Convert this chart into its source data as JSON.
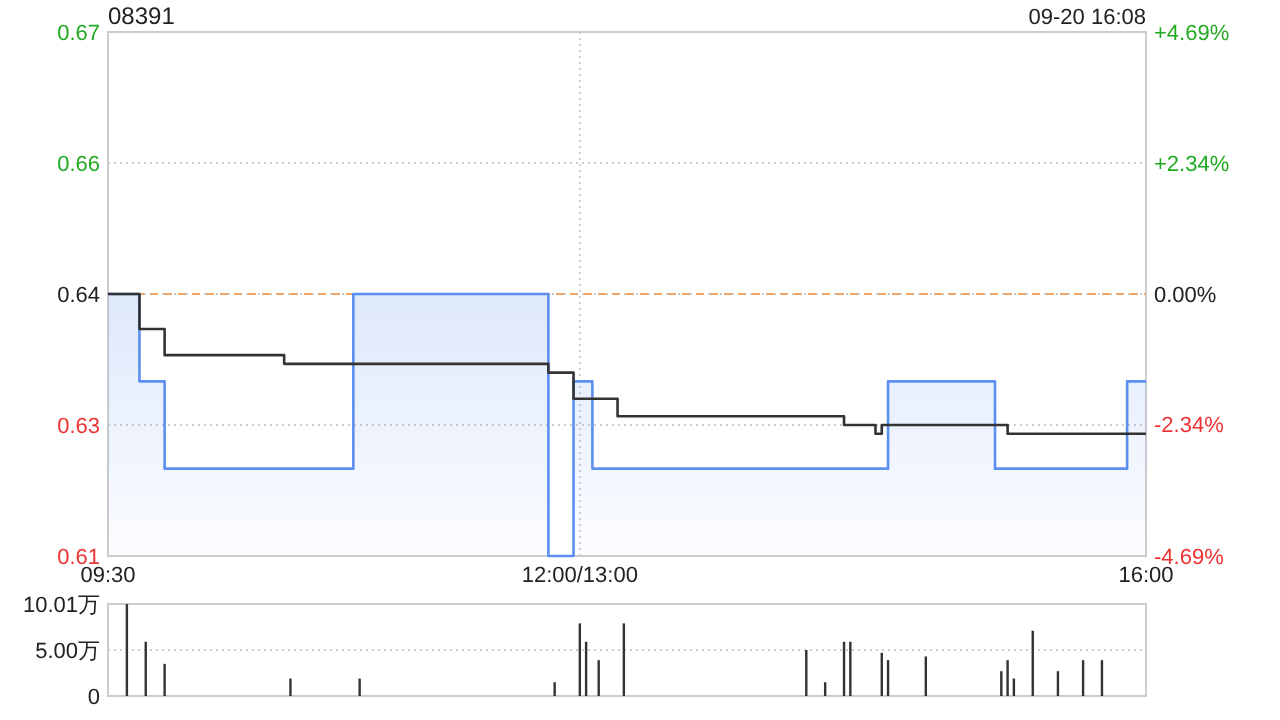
{
  "chart_data": [
    {
      "type": "line",
      "title": "08391",
      "subtitle": "09-20 16:08",
      "categories": [
        "09:30",
        null,
        null,
        null,
        null,
        null,
        null,
        null,
        null,
        null,
        null,
        null,
        null,
        null,
        null,
        null,
        null,
        null,
        null,
        null,
        null,
        null,
        null,
        null,
        null,
        null,
        null,
        null,
        null,
        null,
        null,
        null,
        null,
        null,
        null,
        null,
        null,
        null,
        null,
        null,
        null,
        null,
        null,
        null,
        null,
        null,
        null,
        null,
        null,
        null,
        null,
        null,
        null,
        null,
        null,
        null,
        null,
        null,
        null,
        null,
        null,
        null,
        null,
        null,
        null,
        null,
        null,
        null,
        null,
        null,
        null,
        null,
        null,
        null,
        null,
        "12:00/13:00",
        null,
        null,
        null,
        null,
        null,
        null,
        null,
        null,
        null,
        null,
        null,
        null,
        null,
        null,
        null,
        null,
        null,
        null,
        null,
        null,
        null,
        null,
        null,
        null,
        null,
        null,
        null,
        null,
        null,
        null,
        null,
        null,
        null,
        null,
        null,
        null,
        null,
        null,
        null,
        null,
        null,
        null,
        null,
        null,
        null,
        null,
        null,
        null,
        null,
        null,
        null,
        null,
        null,
        null,
        null,
        null,
        null,
        null,
        null,
        null,
        null,
        null,
        null,
        null,
        null,
        null,
        null,
        null,
        null,
        null,
        null,
        null,
        null,
        null,
        null,
        null,
        null,
        null,
        null,
        null,
        null,
        null,
        null,
        null,
        null,
        null,
        null,
        null,
        null,
        "16:00"
      ],
      "ylim": [
        0.61,
        0.67
      ],
      "yticks": [
        0.61,
        {
          "value": 0.625,
          "label": "0.63"
        },
        0.64,
        {
          "value": 0.655,
          "label": "0.66"
        },
        0.67
      ],
      "y2lim": [
        -4.69,
        4.69
      ],
      "y2ticks": [
        {
          "value": -4.69,
          "label": "-4.69%"
        },
        {
          "value": -2.34,
          "label": "-2.34%"
        },
        {
          "value": 0,
          "label": "0.00%"
        },
        {
          "value": 2.34,
          "label": "+2.34%"
        },
        {
          "value": 4.69,
          "label": "+4.69%"
        }
      ],
      "grid": true,
      "series": [
        {
          "type": "area",
          "color": "#5b8ff0",
          "values": [
            0.64,
            0.64,
            0.64,
            0.64,
            0.64,
            0.63,
            0.63,
            0.63,
            0.63,
            0.62,
            0.62,
            0.62,
            0.62,
            0.62,
            0.62,
            0.62,
            0.62,
            0.62,
            0.62,
            0.62,
            0.62,
            0.62,
            0.62,
            0.62,
            0.62,
            0.62,
            0.62,
            0.62,
            0.62,
            0.62,
            0.62,
            0.62,
            0.62,
            0.62,
            0.62,
            0.62,
            0.62,
            0.62,
            0.62,
            0.64,
            0.64,
            0.64,
            0.64,
            0.64,
            0.64,
            0.64,
            0.64,
            0.64,
            0.64,
            0.64,
            0.64,
            0.64,
            0.64,
            0.64,
            0.64,
            0.64,
            0.64,
            0.64,
            0.64,
            0.64,
            0.64,
            0.64,
            0.64,
            0.64,
            0.64,
            0.64,
            0.64,
            0.64,
            0.64,
            0.64,
            0.61,
            0.61,
            0.61,
            0.61,
            0.63,
            0.63,
            0.63,
            0.62,
            0.62,
            0.62,
            0.62,
            0.62,
            0.62,
            0.62,
            0.62,
            0.62,
            0.62,
            0.62,
            0.62,
            0.62,
            0.62,
            0.62,
            0.62,
            0.62,
            0.62,
            0.62,
            0.62,
            0.62,
            0.62,
            0.62,
            0.62,
            0.62,
            0.62,
            0.62,
            0.62,
            0.62,
            0.62,
            0.62,
            0.62,
            0.62,
            0.62,
            0.62,
            0.62,
            0.62,
            0.62,
            0.62,
            0.62,
            0.62,
            0.62,
            0.62,
            0.62,
            0.62,
            0.62,
            0.62,
            0.63,
            0.63,
            0.63,
            0.63,
            0.63,
            0.63,
            0.63,
            0.63,
            0.63,
            0.63,
            0.63,
            0.63,
            0.63,
            0.63,
            0.63,
            0.63,
            0.63,
            0.62,
            0.62,
            0.62,
            0.62,
            0.62,
            0.62,
            0.62,
            0.62,
            0.62,
            0.62,
            0.62,
            0.62,
            0.62,
            0.62,
            0.62,
            0.62,
            0.62,
            0.62,
            0.62,
            0.62,
            0.62,
            0.63,
            0.63,
            0.63,
            0.63
          ]
        },
        {
          "type": "step",
          "color": "#333333",
          "values": [
            0.64,
            0.64,
            0.64,
            0.64,
            0.64,
            0.636,
            0.636,
            0.636,
            0.636,
            0.633,
            0.633,
            0.633,
            0.633,
            0.633,
            0.633,
            0.633,
            0.633,
            0.633,
            0.633,
            0.633,
            0.633,
            0.633,
            0.633,
            0.633,
            0.633,
            0.633,
            0.633,
            0.633,
            0.632,
            0.632,
            0.632,
            0.632,
            0.632,
            0.632,
            0.632,
            0.632,
            0.632,
            0.632,
            0.632,
            0.632,
            0.632,
            0.632,
            0.632,
            0.632,
            0.632,
            0.632,
            0.632,
            0.632,
            0.632,
            0.632,
            0.632,
            0.632,
            0.632,
            0.632,
            0.632,
            0.632,
            0.632,
            0.632,
            0.632,
            0.632,
            0.632,
            0.632,
            0.632,
            0.632,
            0.632,
            0.632,
            0.632,
            0.632,
            0.632,
            0.632,
            0.631,
            0.631,
            0.631,
            0.631,
            0.628,
            0.628,
            0.628,
            0.628,
            0.628,
            0.628,
            0.628,
            0.626,
            0.626,
            0.626,
            0.626,
            0.626,
            0.626,
            0.626,
            0.626,
            0.626,
            0.626,
            0.626,
            0.626,
            0.626,
            0.626,
            0.626,
            0.626,
            0.626,
            0.626,
            0.626,
            0.626,
            0.626,
            0.626,
            0.626,
            0.626,
            0.626,
            0.626,
            0.626,
            0.626,
            0.626,
            0.626,
            0.626,
            0.626,
            0.626,
            0.626,
            0.626,
            0.626,
            0.625,
            0.625,
            0.625,
            0.625,
            0.625,
            0.624,
            0.625,
            0.625,
            0.625,
            0.625,
            0.625,
            0.625,
            0.625,
            0.625,
            0.625,
            0.625,
            0.625,
            0.625,
            0.625,
            0.625,
            0.625,
            0.625,
            0.625,
            0.625,
            0.625,
            0.625,
            0.624,
            0.624,
            0.624,
            0.624,
            0.624,
            0.624,
            0.624,
            0.624,
            0.624,
            0.624,
            0.624,
            0.624,
            0.624,
            0.624,
            0.624,
            0.624,
            0.624,
            0.624,
            0.624,
            0.624,
            0.624,
            0.624,
            0.624
          ]
        }
      ],
      "ref_lines": [
        {
          "axis": "y",
          "value": 0.64,
          "color": "#f4a460",
          "line_style": "dashed"
        }
      ]
    },
    {
      "type": "bar",
      "categories": [
        null,
        null,
        null,
        null,
        null,
        null,
        null,
        null,
        null,
        null,
        null,
        null,
        null,
        null,
        null,
        null,
        null,
        null,
        null,
        null,
        null,
        null,
        null,
        null,
        null,
        null,
        null,
        null,
        null,
        null,
        null,
        null,
        null,
        null,
        null,
        null,
        null,
        null,
        null,
        null,
        null,
        null,
        null,
        null,
        null,
        null,
        null,
        null,
        null,
        null,
        null,
        null,
        null,
        null,
        null,
        null,
        null,
        null,
        null,
        null,
        null,
        null,
        null,
        null,
        null,
        null,
        null,
        null,
        null,
        null,
        null,
        null,
        null,
        null,
        null,
        null,
        null,
        null,
        null,
        null,
        null,
        null,
        null,
        null,
        null,
        null,
        null,
        null,
        null,
        null,
        null,
        null,
        null,
        null,
        null,
        null,
        null,
        null,
        null,
        null,
        null,
        null,
        null,
        null,
        null,
        null,
        null,
        null,
        null,
        null,
        null,
        null,
        null,
        null,
        null,
        null,
        null,
        null,
        null,
        null,
        null,
        null,
        null,
        null,
        null,
        null,
        null,
        null,
        null,
        null,
        null,
        null,
        null,
        null,
        null,
        null,
        null,
        null,
        null,
        null,
        null,
        null,
        null,
        null,
        null,
        null,
        null,
        null,
        null,
        null,
        null,
        null,
        null,
        null,
        null,
        null,
        null,
        null,
        null,
        null,
        null,
        null,
        null,
        null,
        null,
        null
      ],
      "ylim": [
        0,
        10.01
      ],
      "yticks": [
        0,
        {
          "value": 5,
          "label": "5.00万"
        },
        {
          "value": 10.01,
          "label": "10.01万"
        }
      ],
      "grid": "y",
      "tick_labels": "y",
      "series": [
        {
          "color": "#333333",
          "values": [
            null,
            null,
            null,
            10,
            null,
            null,
            5.9,
            null,
            null,
            3.5,
            null,
            null,
            null,
            null,
            null,
            null,
            null,
            null,
            null,
            null,
            null,
            null,
            null,
            null,
            null,
            null,
            null,
            null,
            null,
            1.9,
            null,
            null,
            null,
            null,
            null,
            null,
            null,
            null,
            null,
            null,
            1.9,
            null,
            null,
            null,
            null,
            null,
            null,
            null,
            null,
            null,
            null,
            null,
            null,
            null,
            null,
            null,
            null,
            null,
            null,
            null,
            null,
            null,
            null,
            null,
            null,
            null,
            null,
            null,
            null,
            null,
            null,
            1.5,
            null,
            null,
            null,
            7.9,
            5.9,
            null,
            3.9,
            null,
            null,
            null,
            7.9,
            null,
            null,
            null,
            null,
            null,
            null,
            null,
            null,
            null,
            null,
            null,
            null,
            null,
            null,
            null,
            null,
            null,
            null,
            null,
            null,
            null,
            null,
            null,
            null,
            null,
            null,
            null,
            null,
            5.0,
            null,
            null,
            1.5,
            null,
            null,
            5.9,
            5.9,
            null,
            null,
            null,
            null,
            4.7,
            3.9,
            null,
            null,
            null,
            null,
            null,
            4.3,
            null,
            null,
            null,
            null,
            null,
            null,
            null,
            null,
            null,
            null,
            null,
            2.7,
            3.9,
            1.9,
            null,
            null,
            7.1,
            null,
            null,
            null,
            2.7,
            null,
            null,
            null,
            3.9,
            null,
            null,
            3.9,
            null,
            null,
            null,
            null,
            null,
            null,
            null
          ]
        }
      ]
    }
  ]
}
